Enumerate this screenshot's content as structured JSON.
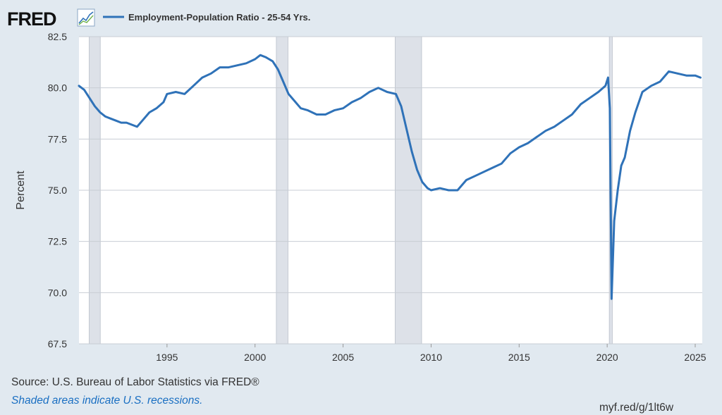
{
  "brand": {
    "logo_text": "FRED"
  },
  "colors": {
    "background": "#e1e9f0",
    "plot_bg": "#ffffff",
    "line": "#2f72b8",
    "recession": "#dde1e8",
    "grid": "#c8cdd4"
  },
  "footer": {
    "source": "Source: U.S. Bureau of Labor Statistics via FRED®",
    "note": "Shaded areas indicate U.S. recessions.",
    "shortlink": "myf.red/g/1lt6w"
  },
  "chart_data": {
    "type": "line",
    "title": "",
    "xlabel": "",
    "ylabel": "Percent",
    "xlim": [
      1990,
      2025.4
    ],
    "ylim": [
      67.5,
      82.5
    ],
    "yticks": [
      "67.5",
      "70.0",
      "72.5",
      "75.0",
      "77.5",
      "80.0",
      "82.5"
    ],
    "xticks": [
      "1995",
      "2000",
      "2005",
      "2010",
      "2015",
      "2020",
      "2025"
    ],
    "legend_position": "top-left",
    "recessions": [
      [
        1990.58,
        1991.21
      ],
      [
        2001.21,
        2001.87
      ],
      [
        2007.96,
        2009.46
      ],
      [
        2020.12,
        2020.29
      ]
    ],
    "series": [
      {
        "name": "Employment-Population Ratio - 25-54 Yrs.",
        "x": [
          1990.0,
          1990.3,
          1990.6,
          1990.9,
          1991.2,
          1991.5,
          1991.8,
          1992.1,
          1992.4,
          1992.7,
          1993.0,
          1993.3,
          1993.6,
          1994.0,
          1994.4,
          1994.8,
          1995.0,
          1995.5,
          1996.0,
          1996.5,
          1997.0,
          1997.5,
          1998.0,
          1998.5,
          1999.0,
          1999.5,
          2000.0,
          2000.3,
          2000.6,
          2001.0,
          2001.3,
          2001.6,
          2001.9,
          2002.2,
          2002.6,
          2003.0,
          2003.5,
          2004.0,
          2004.5,
          2005.0,
          2005.5,
          2006.0,
          2006.5,
          2007.0,
          2007.5,
          2008.0,
          2008.3,
          2008.6,
          2008.9,
          2009.2,
          2009.5,
          2009.8,
          2010.0,
          2010.5,
          2011.0,
          2011.5,
          2012.0,
          2012.5,
          2013.0,
          2013.5,
          2014.0,
          2014.5,
          2015.0,
          2015.5,
          2016.0,
          2016.5,
          2017.0,
          2017.5,
          2018.0,
          2018.5,
          2019.0,
          2019.5,
          2019.9,
          2020.05,
          2020.15,
          2020.25,
          2020.4,
          2020.6,
          2020.8,
          2021.0,
          2021.3,
          2021.6,
          2022.0,
          2022.5,
          2023.0,
          2023.5,
          2024.0,
          2024.5,
          2025.0,
          2025.3
        ],
        "y": [
          80.1,
          79.9,
          79.5,
          79.1,
          78.8,
          78.6,
          78.5,
          78.4,
          78.3,
          78.3,
          78.2,
          78.1,
          78.4,
          78.8,
          79.0,
          79.3,
          79.7,
          79.8,
          79.7,
          80.1,
          80.5,
          80.7,
          81.0,
          81.0,
          81.1,
          81.2,
          81.4,
          81.6,
          81.5,
          81.3,
          80.9,
          80.3,
          79.7,
          79.4,
          79.0,
          78.9,
          78.7,
          78.7,
          78.9,
          79.0,
          79.3,
          79.5,
          79.8,
          80.0,
          79.8,
          79.7,
          79.1,
          78.0,
          76.9,
          76.0,
          75.4,
          75.1,
          75.0,
          75.1,
          75.0,
          75.0,
          75.5,
          75.7,
          75.9,
          76.1,
          76.3,
          76.8,
          77.1,
          77.3,
          77.6,
          77.9,
          78.1,
          78.4,
          78.7,
          79.2,
          79.5,
          79.8,
          80.1,
          80.5,
          79.0,
          69.7,
          73.5,
          75.0,
          76.2,
          76.6,
          77.9,
          78.8,
          79.8,
          80.1,
          80.3,
          80.8,
          80.7,
          80.6,
          80.6,
          80.5
        ]
      }
    ]
  }
}
